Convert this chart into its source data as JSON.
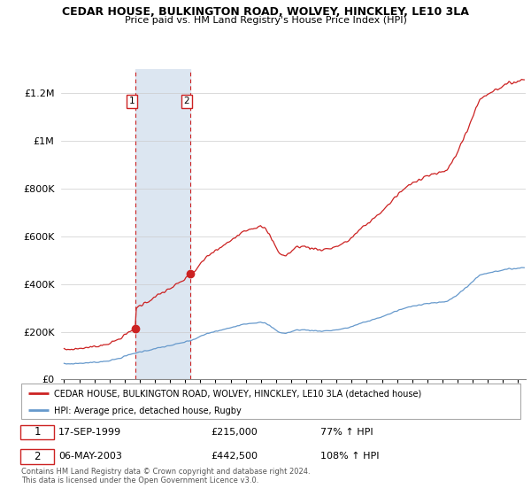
{
  "title": "CEDAR HOUSE, BULKINGTON ROAD, WOLVEY, HINCKLEY, LE10 3LA",
  "subtitle": "Price paid vs. HM Land Registry's House Price Index (HPI)",
  "legend_line1": "CEDAR HOUSE, BULKINGTON ROAD, WOLVEY, HINCKLEY, LE10 3LA (detached house)",
  "legend_line2": "HPI: Average price, detached house, Rugby",
  "footnote": "Contains HM Land Registry data © Crown copyright and database right 2024.\nThis data is licensed under the Open Government Licence v3.0.",
  "sale1_date": "17-SEP-1999",
  "sale1_price": "£215,000",
  "sale1_hpi": "77% ↑ HPI",
  "sale2_date": "06-MAY-2003",
  "sale2_price": "£442,500",
  "sale2_hpi": "108% ↑ HPI",
  "sale1_x": 1999.71,
  "sale1_y": 215000,
  "sale2_x": 2003.35,
  "sale2_y": 442500,
  "red_line_color": "#cc2222",
  "blue_line_color": "#6699cc",
  "shaded_color": "#dce6f1",
  "ylim": [
    0,
    1300000
  ],
  "xlim_start": 1994.8,
  "xlim_end": 2025.5,
  "ytick_values": [
    0,
    200000,
    400000,
    600000,
    800000,
    1000000,
    1200000
  ],
  "ytick_labels": [
    "£0",
    "£200K",
    "£400K",
    "£600K",
    "£800K",
    "£1M",
    "£1.2M"
  ],
  "xtick_years": [
    1995,
    1996,
    1997,
    1998,
    1999,
    2000,
    2001,
    2002,
    2003,
    2004,
    2005,
    2006,
    2007,
    2008,
    2009,
    2010,
    2011,
    2012,
    2013,
    2014,
    2015,
    2016,
    2017,
    2018,
    2019,
    2020,
    2021,
    2022,
    2023,
    2024,
    2025
  ]
}
